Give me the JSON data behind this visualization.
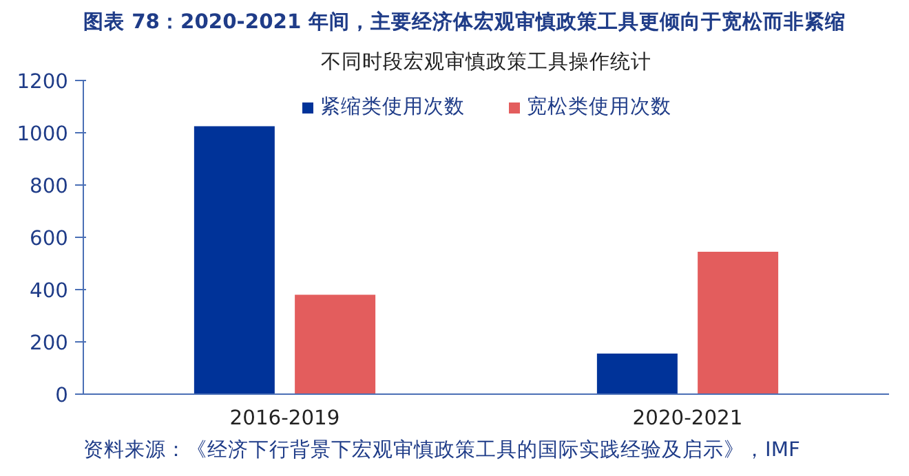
{
  "chart_data": {
    "type": "bar",
    "title": "图表 78：2020-2021 年间，主要经济体宏观审慎政策工具更倾向于宽松而非紧缩",
    "subtitle": "不同时段宏观审慎政策工具操作统计",
    "categories": [
      "2016-2019",
      "2020-2021"
    ],
    "series": [
      {
        "name": "紧缩类使用次数",
        "color": "#003399",
        "values": [
          1025,
          155
        ]
      },
      {
        "name": "宽松类使用次数",
        "color": "#e35d5d",
        "values": [
          380,
          545
        ]
      }
    ],
    "ylim": [
      0,
      1200
    ],
    "yticks": [
      0,
      200,
      400,
      600,
      800,
      1000,
      1200
    ],
    "grid": false,
    "legend": "top",
    "annotations": [
      "资料来源：《经济下行背景下宏观审慎政策工具的国际实践经验及启示》，IMF"
    ]
  }
}
